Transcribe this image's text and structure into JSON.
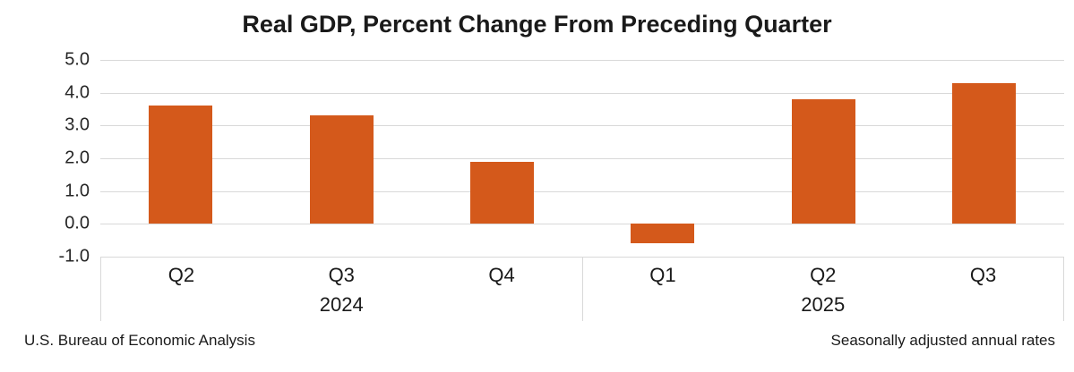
{
  "title": "Real GDP, Percent Change From Preceding Quarter",
  "footer": {
    "left": "U.S. Bureau of Economic Analysis",
    "right": "Seasonally adjusted annual rates"
  },
  "colors": {
    "bar": "#D4591B",
    "gridline": "#D9D9D9",
    "axis_box_border": "#D9D9D9",
    "tick_text": "#262626",
    "label_text": "#1A1A1A",
    "background": "#FFFFFF"
  },
  "chart_data": {
    "type": "bar",
    "title": "Real GDP, Percent Change From Preceding Quarter",
    "categories": [
      "Q2",
      "Q3",
      "Q4",
      "Q1",
      "Q2",
      "Q3"
    ],
    "values": [
      3.6,
      3.3,
      1.9,
      -0.6,
      3.8,
      4.3
    ],
    "year_groups": [
      {
        "label": "2024",
        "count": 3
      },
      {
        "label": "2025",
        "count": 3
      }
    ],
    "ylim": [
      -1.0,
      5.0
    ],
    "yticks": [
      5.0,
      4.0,
      3.0,
      2.0,
      1.0,
      0.0,
      -1.0
    ],
    "ytick_labels": [
      "5.0",
      "4.0",
      "3.0",
      "2.0",
      "1.0",
      "0.0",
      "-1.0"
    ],
    "grid": true,
    "legend": "none",
    "bar_color": "#D4591B",
    "source_note": "U.S. Bureau of Economic Analysis",
    "adjustment_note": "Seasonally adjusted annual rates"
  }
}
